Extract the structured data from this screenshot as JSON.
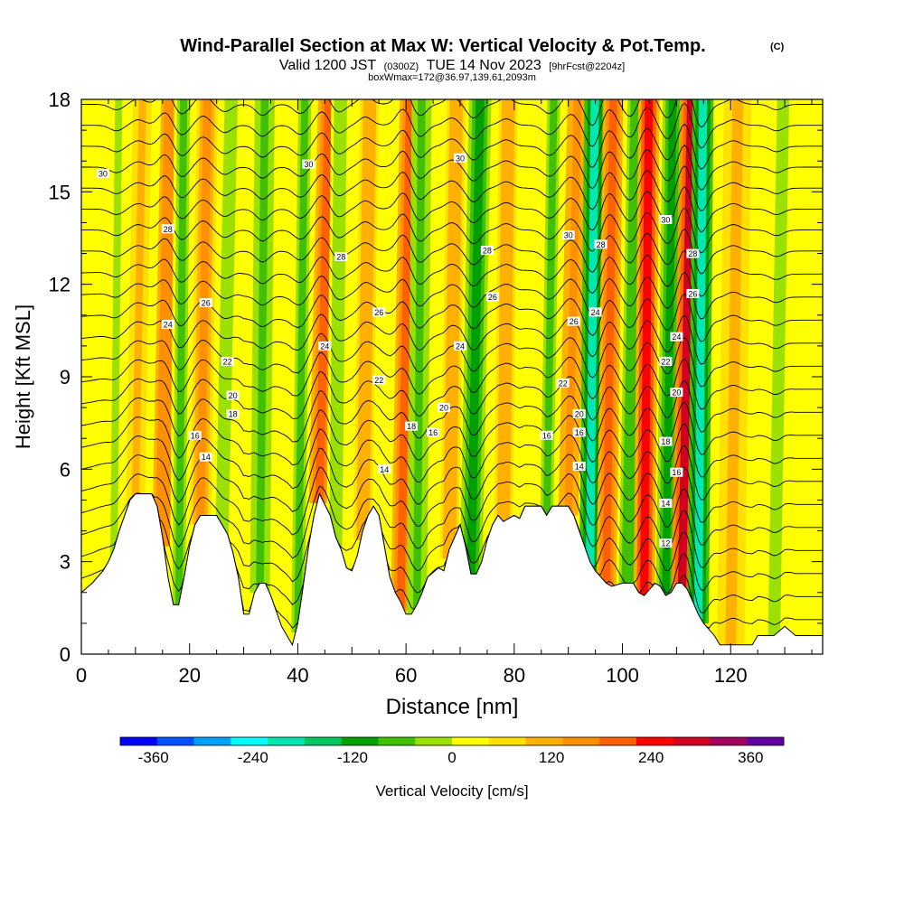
{
  "header": {
    "title": "Wind-Parallel Section at Max W: Vertical Velocity & Pot.Temp.",
    "copyright": "(C)",
    "valid_pre": "Valid 1200 JST",
    "valid_utc": "(0300Z)",
    "valid_date": "TUE 14 Nov 2023",
    "forecast": "[9hrFcst@2204z]",
    "boxinfo": "boxWmax=172@36.97,139.61,2093m"
  },
  "chart_data": {
    "type": "heatmap",
    "title": "Wind-Parallel Section at Max W: Vertical Velocity & Pot.Temp.",
    "xlabel": "Distance [nm]",
    "ylabel": "Height [Kft MSL]",
    "xlim": [
      0,
      137
    ],
    "ylim": [
      0,
      18
    ],
    "x_ticks": [
      "0",
      "20",
      "40",
      "60",
      "80",
      "100",
      "120"
    ],
    "y_ticks": [
      "0",
      "3",
      "6",
      "9",
      "12",
      "15",
      "18"
    ],
    "colorbar": {
      "label": "Vertical Velocity [cm/s]",
      "ticks": [
        "-360",
        "-240",
        "-120",
        "0",
        "120",
        "240",
        "360"
      ],
      "min": -400,
      "max": 400,
      "step": 40,
      "colors": [
        "#0000ff",
        "#0050ff",
        "#00a0ff",
        "#00ffff",
        "#00e8b0",
        "#00c860",
        "#00a000",
        "#40c000",
        "#9ce000",
        "#ffff00",
        "#ffe000",
        "#ffb000",
        "#ff9000",
        "#ff6000",
        "#ff0000",
        "#d00020",
        "#a00060",
        "#6000a0"
      ]
    },
    "terrain": {
      "x": [
        0,
        2,
        4,
        5,
        6,
        7,
        8,
        9,
        10,
        13,
        14,
        15,
        16,
        17,
        18,
        19,
        20,
        21,
        22,
        25,
        26,
        27,
        28,
        29,
        30,
        31,
        32,
        33,
        34,
        35,
        36,
        37,
        38,
        39,
        40,
        41,
        42,
        43,
        44,
        46,
        47,
        48,
        49,
        50,
        51,
        52,
        53,
        54,
        55,
        56,
        57,
        58,
        59,
        60,
        61,
        62,
        63,
        64,
        66,
        67,
        68,
        69,
        70,
        71,
        72,
        73,
        74,
        75,
        76,
        77,
        78,
        80,
        81,
        82,
        85,
        86,
        87,
        90,
        91,
        92,
        93,
        94,
        95,
        96,
        97,
        98,
        100,
        102,
        103,
        104,
        105,
        106,
        107,
        108,
        109,
        110,
        111,
        112,
        113,
        114,
        115,
        116,
        117,
        118,
        120,
        122,
        124,
        125,
        126,
        127,
        128,
        130,
        132,
        134,
        137
      ],
      "y": [
        2.0,
        2.3,
        2.7,
        3.0,
        3.4,
        4.0,
        4.5,
        5.0,
        5.2,
        5.2,
        4.8,
        3.8,
        2.5,
        1.6,
        1.6,
        2.5,
        3.5,
        4.2,
        4.5,
        4.5,
        4.2,
        3.9,
        3.3,
        2.5,
        1.3,
        1.3,
        2.0,
        2.3,
        2.3,
        1.9,
        1.4,
        0.9,
        0.6,
        0.3,
        1.0,
        2.2,
        3.5,
        4.5,
        5.2,
        4.5,
        3.8,
        3.4,
        2.8,
        2.7,
        3.2,
        4.0,
        4.5,
        4.8,
        4.5,
        3.5,
        2.5,
        2.0,
        1.7,
        1.3,
        1.3,
        1.6,
        2.0,
        2.5,
        2.8,
        2.7,
        3.4,
        3.8,
        4.2,
        3.5,
        2.6,
        2.6,
        3.0,
        3.7,
        4.2,
        4.5,
        4.3,
        4.5,
        4.4,
        4.8,
        4.8,
        4.5,
        4.8,
        4.8,
        4.5,
        4.0,
        3.5,
        3.0,
        2.7,
        2.5,
        2.3,
        2.2,
        2.3,
        2.3,
        2.0,
        1.9,
        2.1,
        2.3,
        2.2,
        1.9,
        2.0,
        2.3,
        2.3,
        2.1,
        1.7,
        1.3,
        1.0,
        0.8,
        0.6,
        0.3,
        0.3,
        0.3,
        0.3,
        0.6,
        0.6,
        0.6,
        0.6,
        0.9,
        0.6,
        0.6,
        0.6
      ]
    },
    "w_bands": [
      {
        "x": 6,
        "w": -60,
        "width": 1.5
      },
      {
        "x": 10,
        "w": 60,
        "width": 1.5
      },
      {
        "x": 15,
        "w": 140,
        "width": 1.7
      },
      {
        "x": 18,
        "w": -110,
        "width": 1.5
      },
      {
        "x": 22,
        "w": 100,
        "width": 1.7
      },
      {
        "x": 26,
        "w": -80,
        "width": 1.5
      },
      {
        "x": 33,
        "w": -120,
        "width": 1.6
      },
      {
        "x": 40,
        "w": -100,
        "width": 1.5
      },
      {
        "x": 44,
        "w": 150,
        "width": 1.7
      },
      {
        "x": 47,
        "w": -90,
        "width": 1.5
      },
      {
        "x": 52,
        "w": 90,
        "width": 1.5
      },
      {
        "x": 59,
        "w": 180,
        "width": 1.6
      },
      {
        "x": 62,
        "w": -130,
        "width": 1.6
      },
      {
        "x": 68,
        "w": 80,
        "width": 1.5
      },
      {
        "x": 72,
        "w": -150,
        "width": 1.8
      },
      {
        "x": 78,
        "w": 70,
        "width": 1.5
      },
      {
        "x": 86,
        "w": -100,
        "width": 1.5
      },
      {
        "x": 90,
        "w": 120,
        "width": 1.6
      },
      {
        "x": 94,
        "w": -240,
        "width": 1.7
      },
      {
        "x": 97,
        "w": 180,
        "width": 1.6
      },
      {
        "x": 101,
        "w": -140,
        "width": 1.5
      },
      {
        "x": 104,
        "w": 200,
        "width": 1.7
      },
      {
        "x": 108,
        "w": -160,
        "width": 1.6
      },
      {
        "x": 111,
        "w": 260,
        "width": 1.7
      },
      {
        "x": 114,
        "w": -260,
        "width": 1.7
      },
      {
        "x": 120,
        "w": 60,
        "width": 2.2
      },
      {
        "x": 128,
        "w": -60,
        "width": 2.5
      }
    ],
    "theta_labels": [
      {
        "x": 4,
        "y": 15.6,
        "text": "30"
      },
      {
        "x": 42,
        "y": 15.9,
        "text": "30"
      },
      {
        "x": 70,
        "y": 16.1,
        "text": "30"
      },
      {
        "x": 90,
        "y": 13.6,
        "text": "30"
      },
      {
        "x": 108,
        "y": 14.1,
        "text": "30"
      },
      {
        "x": 16,
        "y": 13.8,
        "text": "28"
      },
      {
        "x": 48,
        "y": 12.9,
        "text": "28"
      },
      {
        "x": 75,
        "y": 13.1,
        "text": "28"
      },
      {
        "x": 96,
        "y": 13.3,
        "text": "28"
      },
      {
        "x": 113,
        "y": 13.0,
        "text": "28"
      },
      {
        "x": 23,
        "y": 11.4,
        "text": "26"
      },
      {
        "x": 55,
        "y": 11.1,
        "text": "26"
      },
      {
        "x": 76,
        "y": 11.6,
        "text": "26"
      },
      {
        "x": 91,
        "y": 10.8,
        "text": "26"
      },
      {
        "x": 113,
        "y": 11.7,
        "text": "26"
      },
      {
        "x": 16,
        "y": 10.7,
        "text": "24"
      },
      {
        "x": 45,
        "y": 10.0,
        "text": "24"
      },
      {
        "x": 70,
        "y": 10.0,
        "text": "24"
      },
      {
        "x": 95,
        "y": 11.1,
        "text": "24"
      },
      {
        "x": 110,
        "y": 10.3,
        "text": "24"
      },
      {
        "x": 27,
        "y": 9.5,
        "text": "22"
      },
      {
        "x": 55,
        "y": 8.9,
        "text": "22"
      },
      {
        "x": 89,
        "y": 8.8,
        "text": "22"
      },
      {
        "x": 108,
        "y": 9.5,
        "text": "22"
      },
      {
        "x": 28,
        "y": 8.4,
        "text": "20"
      },
      {
        "x": 67,
        "y": 8.0,
        "text": "20"
      },
      {
        "x": 92,
        "y": 7.8,
        "text": "20"
      },
      {
        "x": 110,
        "y": 8.5,
        "text": "20"
      },
      {
        "x": 28,
        "y": 7.8,
        "text": "18"
      },
      {
        "x": 61,
        "y": 7.4,
        "text": "18"
      },
      {
        "x": 108,
        "y": 6.9,
        "text": "18"
      },
      {
        "x": 21,
        "y": 7.1,
        "text": "16"
      },
      {
        "x": 65,
        "y": 7.2,
        "text": "16"
      },
      {
        "x": 86,
        "y": 7.1,
        "text": "16"
      },
      {
        "x": 92,
        "y": 7.2,
        "text": "16"
      },
      {
        "x": 110,
        "y": 5.9,
        "text": "16"
      },
      {
        "x": 23,
        "y": 6.4,
        "text": "14"
      },
      {
        "x": 56,
        "y": 6.0,
        "text": "14"
      },
      {
        "x": 92,
        "y": 6.1,
        "text": "14"
      },
      {
        "x": 108,
        "y": 4.9,
        "text": "14"
      },
      {
        "x": 108,
        "y": 3.6,
        "text": "12"
      }
    ]
  }
}
